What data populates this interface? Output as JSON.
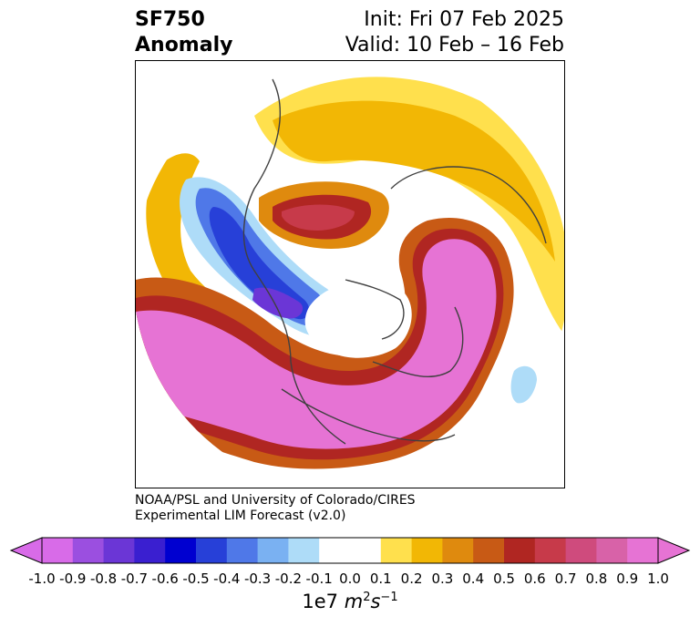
{
  "title": {
    "variable": "SF750",
    "field": "Anomaly",
    "init": "Init: Fri 07 Feb 2025",
    "valid": "Valid: 10 Feb – 16 Feb"
  },
  "credit": {
    "line1": "NOAA/PSL and University of Colorado/CIRES",
    "line2": "Experimental LIM Forecast (v2.0)"
  },
  "colorbar": {
    "units_prefix": "1e7 ",
    "units_base": "m",
    "units_exp1": "2",
    "units_mid": "s",
    "units_exp2": "−1",
    "ticks": [
      "-1.0",
      "-0.9",
      "-0.8",
      "-0.7",
      "-0.6",
      "-0.5",
      "-0.4",
      "-0.3",
      "-0.2",
      "-0.1",
      "0.0",
      "0.1",
      "0.2",
      "0.3",
      "0.4",
      "0.5",
      "0.6",
      "0.7",
      "0.8",
      "0.9",
      "1.0"
    ],
    "colors": [
      "#d86be8",
      "#9b4fe0",
      "#6b36d6",
      "#3a1fd0",
      "#0000d0",
      "#2740d8",
      "#4f78e8",
      "#7ab1f2",
      "#aedcf8",
      "#ffffff",
      "#ffffff",
      "#ffe04d",
      "#f2b705",
      "#df8a0e",
      "#c85a15",
      "#b02622",
      "#c73a4a",
      "#cf4b7d",
      "#d862a8",
      "#e673d4"
    ],
    "extend_min_color": "#d86be8",
    "extend_max_color": "#e673d4"
  },
  "map": {
    "projection": "polar stereographic (north pole)",
    "coastline_color": "#404040"
  }
}
